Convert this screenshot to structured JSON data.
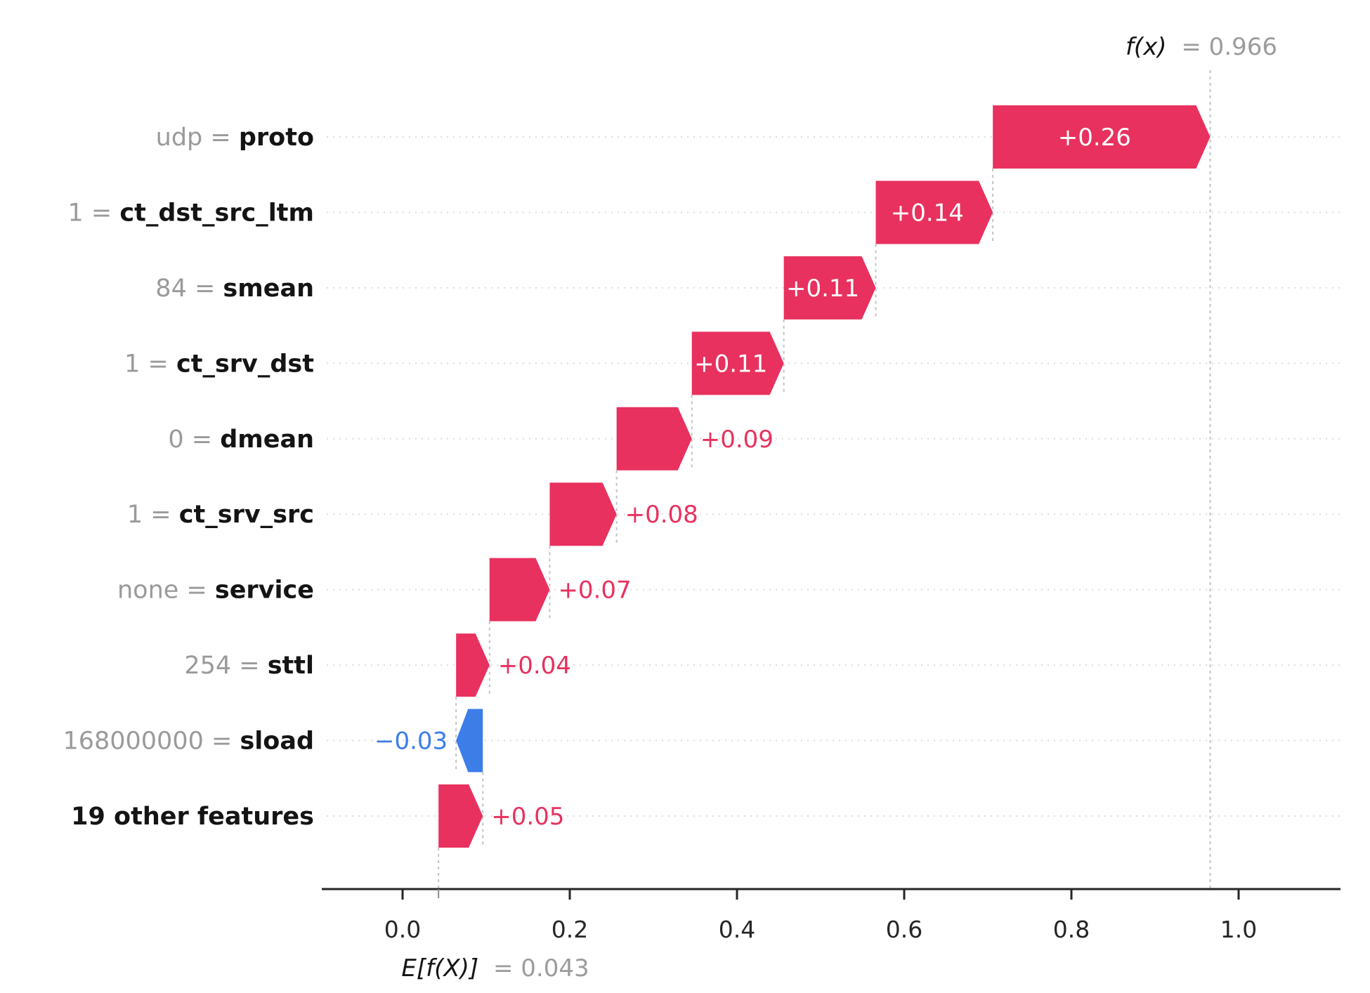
{
  "annotations": {
    "fx_name": "f(x)",
    "fx_value": "= 0.966",
    "ef_name": "E[f(X)]",
    "ef_value": "= 0.043"
  },
  "chart_data": {
    "type": "bar",
    "subtype": "shap-waterfall",
    "title": "",
    "xlabel": "",
    "ylabel": "",
    "legend": "none",
    "grid": "dotted-horizontal-row-guides",
    "fx_value": 0.966,
    "base_value": 0.043,
    "xlim": [
      -0.09,
      1.13
    ],
    "x_tick_values": [
      0.0,
      0.2,
      0.4,
      0.6,
      0.8,
      1.0
    ],
    "x_tick_labels": [
      "0.0",
      "0.2",
      "0.4",
      "0.6",
      "0.8",
      "1.0"
    ],
    "colors": {
      "positive": "#e8315e",
      "negative": "#3c7de8",
      "bar_label_inside": "#ffffff",
      "value_text_gray": "#9a9a9a",
      "feature_text": "#141414",
      "axis": "#262626",
      "row_line": "#dcdcdc",
      "connector": "#c2c2c2",
      "annotation_gray": "#9c9c9c"
    },
    "rows": [
      {
        "feature_value": "udp",
        "feature_name": "proto",
        "label": "+0.26",
        "value": 0.26
      },
      {
        "feature_value": "1",
        "feature_name": "ct_dst_src_ltm",
        "label": "+0.14",
        "value": 0.14
      },
      {
        "feature_value": "84",
        "feature_name": "smean",
        "label": "+0.11",
        "value": 0.11
      },
      {
        "feature_value": "1",
        "feature_name": "ct_srv_dst",
        "label": "+0.11",
        "value": 0.11
      },
      {
        "feature_value": "0",
        "feature_name": "dmean",
        "label": "+0.09",
        "value": 0.09
      },
      {
        "feature_value": "1",
        "feature_name": "ct_srv_src",
        "label": "+0.08",
        "value": 0.08
      },
      {
        "feature_value": "none",
        "feature_name": "service",
        "label": "+0.07",
        "value": 0.072
      },
      {
        "feature_value": "254",
        "feature_name": "sttl",
        "label": "+0.04",
        "value": 0.04
      },
      {
        "feature_value": "168000000",
        "feature_name": "sload",
        "label": "−0.03",
        "value": -0.032
      },
      {
        "feature_value": "",
        "feature_name": "19 other features",
        "label": "+0.05",
        "value": 0.053
      }
    ]
  }
}
